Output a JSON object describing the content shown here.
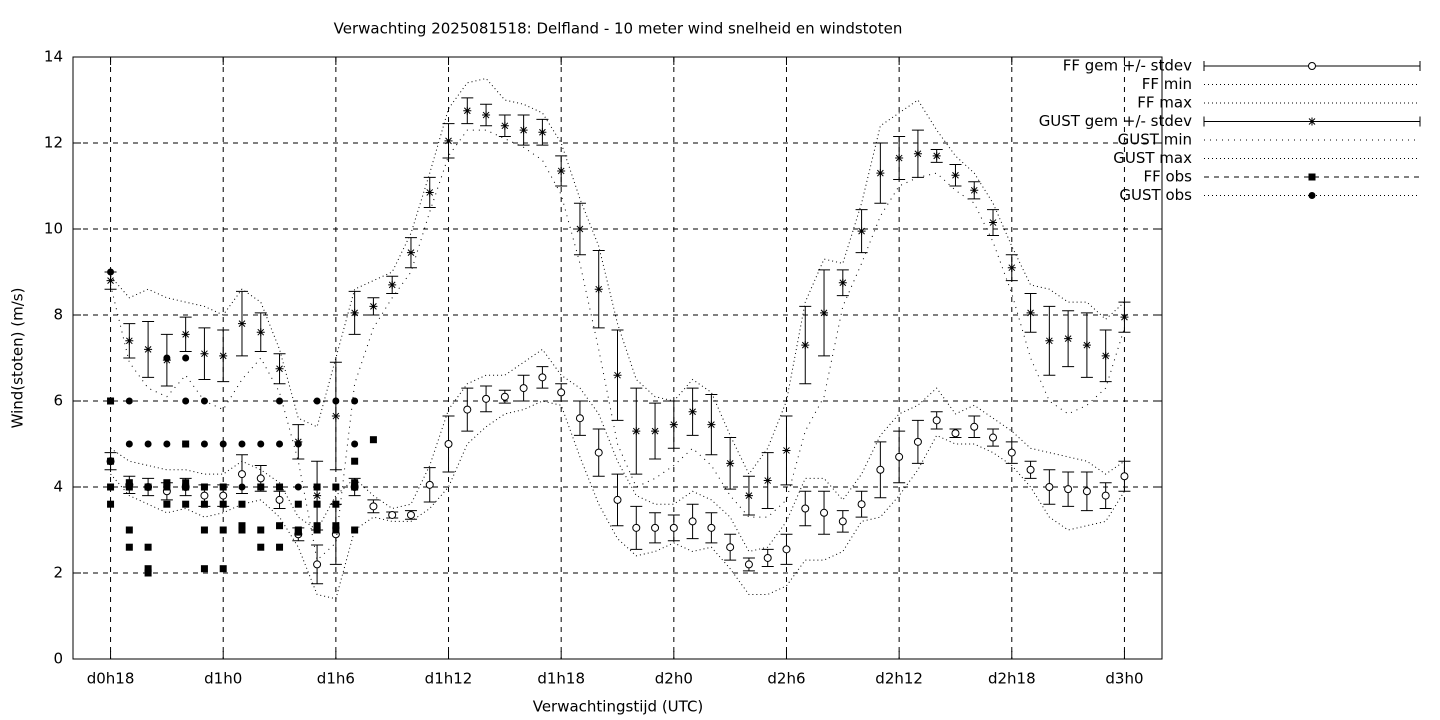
{
  "chart_data": {
    "type": "errorbar",
    "title": "Verwachting 2025081518: Delfland - 10 meter wind snelheid en windstoten",
    "xlabel": "Verwachtingstijd (UTC)",
    "ylabel": "Wind(stoten) (m/s)",
    "xlim": [
      16,
      74
    ],
    "ylim": [
      0,
      14
    ],
    "xticks": [
      {
        "value": 18,
        "label": "d0h18"
      },
      {
        "value": 24,
        "label": "d1h0"
      },
      {
        "value": 30,
        "label": "d1h6"
      },
      {
        "value": 36,
        "label": "d1h12"
      },
      {
        "value": 42,
        "label": "d1h18"
      },
      {
        "value": 48,
        "label": "d2h0"
      },
      {
        "value": 54,
        "label": "d2h6"
      },
      {
        "value": 60,
        "label": "d2h12"
      },
      {
        "value": 66,
        "label": "d2h18"
      },
      {
        "value": 72,
        "label": "d3h0"
      }
    ],
    "yticks": [
      0,
      2,
      4,
      6,
      8,
      10,
      12,
      14
    ],
    "grid": true,
    "legend": "outside-top-right",
    "x": [
      18,
      19,
      20,
      21,
      22,
      23,
      24,
      25,
      26,
      27,
      28,
      29,
      30,
      31,
      32,
      33,
      34,
      35,
      36,
      37,
      38,
      39,
      40,
      41,
      42,
      43,
      44,
      45,
      46,
      47,
      48,
      49,
      50,
      51,
      52,
      53,
      54,
      55,
      56,
      57,
      58,
      59,
      60,
      61,
      62,
      63,
      64,
      65,
      66,
      67,
      68,
      69,
      70,
      71,
      72
    ],
    "series": [
      {
        "name": "FF gem +/- stdev",
        "kind": "errorbar",
        "marker": "circle",
        "color": "#000000",
        "values": [
          4.6,
          4.05,
          4.0,
          3.9,
          4.0,
          3.8,
          3.8,
          4.3,
          4.2,
          3.7,
          2.9,
          2.2,
          2.9,
          4.0,
          3.55,
          3.35,
          3.35,
          4.05,
          5.0,
          5.8,
          6.05,
          6.1,
          6.3,
          6.55,
          6.2,
          5.6,
          4.8,
          3.7,
          3.05,
          3.05,
          3.05,
          3.2,
          3.05,
          2.6,
          2.2,
          2.35,
          2.55,
          3.5,
          3.4,
          3.2,
          3.6,
          4.4,
          4.7,
          5.05,
          5.55,
          5.25,
          5.4,
          5.15,
          4.8,
          4.4,
          4.0,
          3.95,
          3.9,
          3.8,
          4.25
        ],
        "errors": [
          0.2,
          0.2,
          0.2,
          0.2,
          0.2,
          0.25,
          0.25,
          0.45,
          0.3,
          0.2,
          0.15,
          0.45,
          0.7,
          0.2,
          0.15,
          0.07,
          0.1,
          0.4,
          0.65,
          0.5,
          0.3,
          0.15,
          0.3,
          0.25,
          0.2,
          0.4,
          0.55,
          0.6,
          0.5,
          0.35,
          0.3,
          0.4,
          0.35,
          0.3,
          0.15,
          0.2,
          0.35,
          0.4,
          0.5,
          0.25,
          0.3,
          0.65,
          0.6,
          0.5,
          0.2,
          0.1,
          0.25,
          0.2,
          0.25,
          0.2,
          0.4,
          0.4,
          0.45,
          0.3,
          0.35
        ]
      },
      {
        "name": "FF min",
        "kind": "line",
        "dash": "dotted",
        "color": "#000000",
        "values": [
          4.3,
          3.8,
          3.6,
          3.4,
          3.5,
          3.3,
          3.4,
          3.6,
          3.7,
          3.3,
          2.6,
          1.5,
          1.4,
          3.0,
          3.3,
          3.2,
          3.2,
          3.5,
          4.0,
          5.0,
          5.4,
          5.7,
          5.8,
          6.0,
          5.9,
          4.7,
          3.6,
          2.8,
          2.4,
          2.5,
          2.7,
          2.5,
          2.6,
          2.1,
          1.5,
          1.5,
          1.7,
          2.3,
          2.3,
          2.5,
          3.2,
          3.3,
          3.8,
          4.4,
          5.2,
          5.0,
          5.0,
          4.8,
          4.5,
          4.0,
          3.3,
          3.0,
          3.1,
          3.2,
          3.9
        ]
      },
      {
        "name": "FF max",
        "kind": "line",
        "dash": "dotted",
        "color": "#000000",
        "values": [
          4.9,
          4.6,
          4.5,
          4.4,
          4.4,
          4.3,
          4.3,
          4.6,
          4.4,
          4.1,
          3.3,
          3.0,
          3.8,
          4.2,
          3.8,
          3.5,
          3.6,
          4.5,
          5.8,
          6.4,
          6.6,
          6.6,
          6.9,
          7.2,
          6.6,
          6.3,
          5.7,
          4.6,
          3.8,
          3.6,
          3.6,
          3.9,
          3.7,
          3.3,
          2.5,
          2.6,
          3.2,
          4.2,
          4.2,
          3.7,
          4.3,
          5.2,
          5.7,
          5.9,
          6.3,
          5.7,
          5.9,
          5.6,
          5.3,
          4.9,
          4.8,
          4.7,
          4.6,
          4.3,
          4.6
        ]
      },
      {
        "name": "GUST gem +/- stdev",
        "kind": "errorbar",
        "marker": "star",
        "color": "#000000",
        "values": [
          8.8,
          7.4,
          7.2,
          6.95,
          7.55,
          7.1,
          7.05,
          7.8,
          7.6,
          6.75,
          5.05,
          3.8,
          5.65,
          8.05,
          8.2,
          8.7,
          9.45,
          10.85,
          12.05,
          12.75,
          12.65,
          12.4,
          12.3,
          12.25,
          11.35,
          10.0,
          8.6,
          6.6,
          5.3,
          5.3,
          5.45,
          5.75,
          5.45,
          4.55,
          3.8,
          4.15,
          4.85,
          7.3,
          8.05,
          8.75,
          9.95,
          11.3,
          11.65,
          11.75,
          11.7,
          11.25,
          10.9,
          10.15,
          9.1,
          8.05,
          7.4,
          7.45,
          7.3,
          7.05,
          7.95
        ],
        "errors": [
          0.2,
          0.4,
          0.65,
          0.6,
          0.4,
          0.6,
          0.6,
          0.75,
          0.45,
          0.35,
          0.4,
          0.8,
          1.25,
          0.5,
          0.2,
          0.2,
          0.35,
          0.35,
          0.4,
          0.3,
          0.25,
          0.25,
          0.35,
          0.3,
          0.35,
          0.6,
          0.9,
          1.05,
          1.0,
          0.65,
          0.55,
          0.55,
          0.7,
          0.6,
          0.45,
          0.65,
          0.8,
          0.9,
          1.0,
          0.3,
          0.5,
          0.7,
          0.5,
          0.55,
          0.15,
          0.25,
          0.2,
          0.3,
          0.3,
          0.45,
          0.8,
          0.65,
          0.75,
          0.6,
          0.35
        ]
      },
      {
        "name": "GUST min",
        "kind": "line",
        "dash": "dotted-wide",
        "color": "#000000",
        "values": [
          8.7,
          6.9,
          6.3,
          6.1,
          6.6,
          6.0,
          5.8,
          6.5,
          7.0,
          6.2,
          4.6,
          2.3,
          2.7,
          6.4,
          7.7,
          8.4,
          9.0,
          10.4,
          11.7,
          12.3,
          12.3,
          12.1,
          11.9,
          11.6,
          10.8,
          9.2,
          7.2,
          5.0,
          4.0,
          4.2,
          4.5,
          4.9,
          4.5,
          3.8,
          3.3,
          3.3,
          3.7,
          5.3,
          6.1,
          8.2,
          9.2,
          10.3,
          11.0,
          11.2,
          11.3,
          10.9,
          10.6,
          9.7,
          8.5,
          7.0,
          6.0,
          5.7,
          5.9,
          6.3,
          7.7
        ]
      },
      {
        "name": "GUST max",
        "kind": "line",
        "dash": "dotted",
        "color": "#000000",
        "values": [
          8.9,
          8.4,
          8.6,
          8.4,
          8.3,
          8.2,
          8.0,
          8.6,
          8.3,
          7.2,
          5.6,
          5.4,
          7.0,
          8.6,
          8.8,
          9.0,
          9.9,
          11.3,
          12.8,
          13.4,
          13.5,
          13.0,
          12.9,
          12.7,
          12.0,
          10.7,
          9.6,
          7.8,
          6.5,
          6.1,
          6.0,
          6.5,
          6.2,
          5.2,
          4.3,
          4.9,
          6.0,
          8.3,
          9.3,
          9.2,
          10.6,
          12.4,
          12.7,
          13.0,
          12.3,
          11.7,
          11.3,
          10.6,
          9.6,
          8.7,
          8.6,
          8.3,
          8.3,
          7.9,
          8.3
        ]
      },
      {
        "name": "FF obs",
        "kind": "points",
        "marker": "square",
        "dash": "dashed",
        "color": "#000000",
        "x": [
          18,
          18,
          18,
          18,
          19,
          19,
          19,
          19,
          20,
          20,
          20,
          20,
          21,
          21,
          21,
          22,
          22,
          22,
          22,
          23,
          23,
          23,
          23,
          24,
          24,
          24,
          24,
          25,
          25,
          25,
          26,
          26,
          26,
          27,
          27,
          27,
          28,
          28,
          28,
          29,
          29,
          29,
          29,
          30,
          30,
          30,
          30,
          31,
          31,
          31,
          31,
          32
        ],
        "values": [
          6.0,
          4.6,
          4.0,
          3.6,
          4.1,
          4.0,
          3.0,
          2.6,
          4.0,
          2.6,
          2.1,
          2.0,
          4.1,
          4.0,
          3.6,
          5.0,
          4.1,
          4.0,
          3.6,
          4.0,
          3.6,
          3.0,
          2.1,
          4.0,
          3.6,
          3.0,
          2.1,
          3.6,
          3.1,
          3.0,
          4.0,
          3.0,
          2.6,
          4.0,
          3.1,
          2.6,
          3.6,
          3.0,
          2.95,
          4.0,
          3.6,
          3.1,
          3.0,
          4.0,
          3.6,
          3.1,
          3.0,
          4.6,
          4.1,
          4.0,
          3.0,
          5.1
        ]
      },
      {
        "name": "GUST obs",
        "kind": "points",
        "marker": "dot",
        "dash": "dotted",
        "color": "#000000",
        "x": [
          18,
          19,
          19,
          19,
          20,
          20,
          21,
          21,
          22,
          22,
          22,
          22,
          23,
          23,
          23,
          24,
          24,
          25,
          25,
          26,
          26,
          27,
          27,
          27,
          28,
          28,
          29,
          29,
          30,
          31,
          31,
          31
        ],
        "values": [
          9.0,
          6.0,
          5.0,
          4.0,
          5.0,
          4.0,
          7.0,
          5.0,
          7.0,
          6.0,
          5.0,
          4.0,
          6.0,
          5.0,
          4.0,
          5.0,
          4.0,
          5.0,
          4.0,
          5.0,
          4.0,
          6.0,
          5.0,
          4.0,
          5.0,
          4.0,
          6.0,
          4.0,
          6.0,
          6.0,
          5.0,
          4.0
        ]
      }
    ]
  }
}
